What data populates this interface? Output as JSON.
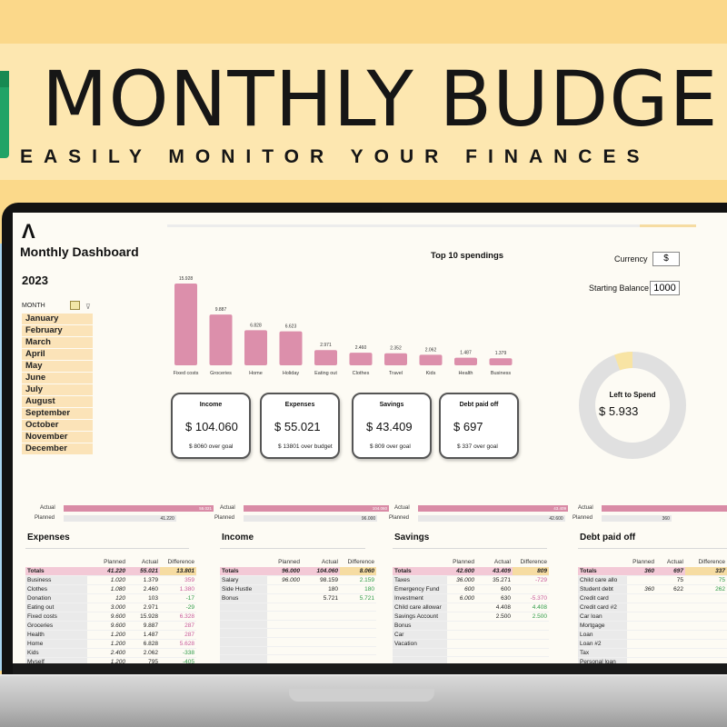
{
  "banner": {
    "title": "MONTHLY BUDGE",
    "subtitle": "EASILY MONITOR YOUR FINANCES"
  },
  "dashboard": {
    "logo": "Λ",
    "title": "Monthly Dashboard",
    "year": "2023",
    "month_header": "MONTH",
    "months": [
      "January",
      "February",
      "March",
      "April",
      "May",
      "June",
      "July",
      "August",
      "September",
      "October",
      "November",
      "December"
    ],
    "currency_label": "Currency",
    "currency_value": "$",
    "starting_balance_label": "Starting Balance",
    "starting_balance_value": "1000",
    "left_to_spend_label": "Left to Spend",
    "left_to_spend_value": "$  5.933"
  },
  "chart_data": {
    "type": "bar",
    "title": "Top 10 spendings",
    "categories": [
      "Fixed costs",
      "Groceries",
      "Home",
      "Holiday",
      "Eating out",
      "Clothes",
      "Travel",
      "Kids",
      "Health",
      "Business"
    ],
    "values": [
      15928,
      9887,
      6828,
      6623,
      2971,
      2460,
      2352,
      2062,
      1487,
      1379
    ],
    "value_labels": [
      "15.928",
      "9.887",
      "6.828",
      "6.623",
      "2.971",
      "2.460",
      "2.352",
      "2.062",
      "1.487",
      "1.379"
    ],
    "bar_color": "#dc8fab"
  },
  "donut": {
    "spent_fraction": 0.945,
    "colors": {
      "spent": "#e0e0e0",
      "left": "#f8e4a4"
    }
  },
  "kpis": [
    {
      "title": "Income",
      "value": "$  104.060",
      "sub": "$  8060 over goal"
    },
    {
      "title": "Expenses",
      "value": "$  55.021",
      "sub": "$  13801 over budget"
    },
    {
      "title": "Savings",
      "value": "$  43.409",
      "sub": "$  809 over goal"
    },
    {
      "title": "Debt paid off",
      "value": "$  697",
      "sub": "$  337 over goal"
    }
  ],
  "progress": [
    {
      "actual_label": "Actual",
      "planned_label": "Planned",
      "actual_text": "55.021",
      "planned_text": "41.220",
      "actual_fraction": 1.0,
      "planned_fraction": 0.75
    },
    {
      "actual_label": "Actual",
      "planned_label": "Planned",
      "actual_text": "104.060",
      "planned_text": "96.000",
      "actual_fraction": 1.0,
      "planned_fraction": 0.92
    },
    {
      "actual_label": "Actual",
      "planned_label": "Planned",
      "actual_text": "43.409",
      "planned_text": "42.600",
      "actual_fraction": 1.0,
      "planned_fraction": 0.98
    },
    {
      "actual_label": "Actual",
      "planned_label": "Planned",
      "actual_text": "697",
      "planned_text": "360",
      "actual_fraction": 1.0,
      "planned_fraction": 0.52
    }
  ],
  "tables": [
    {
      "title": "Expenses",
      "headers": [
        "",
        "Planned",
        "Actual",
        "Difference"
      ],
      "totals": [
        "Totals",
        "41.220",
        "55.021",
        "13.801"
      ],
      "rows": [
        [
          "Business",
          "1.020",
          "1.379",
          "359",
          "neg"
        ],
        [
          "Clothes",
          "1.080",
          "2.460",
          "1.380",
          "neg"
        ],
        [
          "Donation",
          "120",
          "103",
          "-17",
          "pos"
        ],
        [
          "Eating out",
          "3.000",
          "2.971",
          "-29",
          "pos"
        ],
        [
          "Fixed costs",
          "9.600",
          "15.928",
          "6.328",
          "neg"
        ],
        [
          "Groceries",
          "9.600",
          "9.887",
          "287",
          "neg"
        ],
        [
          "Health",
          "1.200",
          "1.487",
          "287",
          "neg"
        ],
        [
          "Home",
          "1.200",
          "6.828",
          "5.628",
          "neg"
        ],
        [
          "Kids",
          "2.400",
          "2.062",
          "-338",
          "pos"
        ],
        [
          "Myself",
          "1.200",
          "795",
          "-405",
          "pos"
        ]
      ]
    },
    {
      "title": "Income",
      "headers": [
        "",
        "Planned",
        "Actual",
        "Difference"
      ],
      "totals": [
        "Totals",
        "96.000",
        "104.060",
        "8.060"
      ],
      "rows": [
        [
          "Salary",
          "96.000",
          "98.159",
          "2.159",
          "pos"
        ],
        [
          "Side Hustle",
          "",
          "180",
          "180",
          "pos"
        ],
        [
          "Bonus",
          "",
          "5.721",
          "5.721",
          "pos"
        ],
        [
          "",
          "",
          "",
          "",
          ""
        ],
        [
          "",
          "",
          "",
          "",
          ""
        ],
        [
          "",
          "",
          "",
          "",
          ""
        ],
        [
          "",
          "",
          "",
          "",
          ""
        ],
        [
          "",
          "",
          "",
          "",
          ""
        ],
        [
          "",
          "",
          "",
          "",
          ""
        ],
        [
          "",
          "",
          "",
          "",
          ""
        ]
      ]
    },
    {
      "title": "Savings",
      "headers": [
        "",
        "Planned",
        "Actual",
        "Difference"
      ],
      "totals": [
        "Totals",
        "42.600",
        "43.409",
        "809"
      ],
      "rows": [
        [
          "Taxes",
          "36.000",
          "35.271",
          "-729",
          "neg"
        ],
        [
          "Emergency Fund",
          "600",
          "600",
          "",
          ""
        ],
        [
          "Investment",
          "6.000",
          "630",
          "-5.370",
          "neg"
        ],
        [
          "Child care allowar",
          "",
          "4.408",
          "4.408",
          "pos"
        ],
        [
          "Savings Account",
          "",
          "2.500",
          "2.500",
          "pos"
        ],
        [
          "Bonus",
          "",
          "",
          "",
          ""
        ],
        [
          "Car",
          "",
          "",
          "",
          ""
        ],
        [
          "Vacation",
          "",
          "",
          "",
          ""
        ],
        [
          "",
          "",
          "",
          "",
          ""
        ],
        [
          "",
          "",
          "",
          "",
          ""
        ]
      ]
    },
    {
      "title": "Debt paid off",
      "headers": [
        "",
        "Planned",
        "Actual",
        "Difference"
      ],
      "totals": [
        "Totals",
        "360",
        "697",
        "337"
      ],
      "rows": [
        [
          "Child care allo",
          "",
          "75",
          "75",
          "pos"
        ],
        [
          "Student debt",
          "360",
          "622",
          "262",
          "pos"
        ],
        [
          "Credit card",
          "",
          "",
          "",
          ""
        ],
        [
          "Credit card #2",
          "",
          "",
          "",
          ""
        ],
        [
          "Car loan",
          "",
          "",
          "",
          ""
        ],
        [
          "Mortgage",
          "",
          "",
          "",
          ""
        ],
        [
          "Loan",
          "",
          "",
          "",
          ""
        ],
        [
          "Loan #2",
          "",
          "",
          "",
          ""
        ],
        [
          "Tax",
          "",
          "",
          "",
          ""
        ],
        [
          "Personal loan",
          "",
          "",
          "",
          ""
        ]
      ]
    }
  ]
}
